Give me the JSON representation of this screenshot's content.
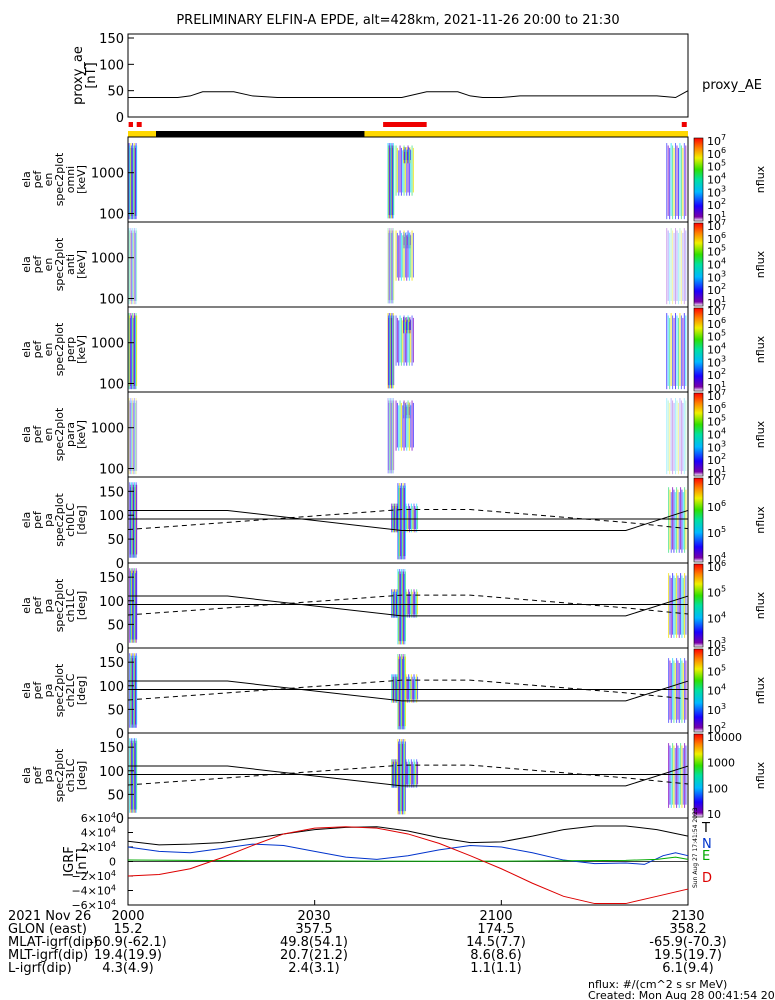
{
  "title": "PRELIMINARY ELFIN-A EPDE, alt=428km, 2021-11-26 20:00 to 21:30",
  "colors": {
    "line": "#000000",
    "bar_yellow": "#ffd800",
    "bar_black": "#000000",
    "bar_red": "#ee0000"
  },
  "chart_data": [
    {
      "type": "line",
      "name": "proxy_ae",
      "ylabel": [
        "proxy_ae",
        "[nT]"
      ],
      "legend": "proxy_AE",
      "ylim": [
        0,
        150
      ],
      "yticks": [
        "150",
        "100",
        "50",
        "0"
      ],
      "x": [
        0,
        4,
        8,
        10,
        12,
        14,
        17,
        20,
        24,
        28,
        31,
        33,
        35,
        37,
        40,
        44,
        48,
        50,
        53,
        55,
        57,
        60,
        63,
        67,
        71,
        75,
        80,
        85,
        88,
        90
      ],
      "values": [
        37,
        37,
        37,
        40,
        48,
        48,
        48,
        40,
        37,
        37,
        37,
        37,
        37,
        37,
        37,
        37,
        48,
        48,
        48,
        40,
        37,
        37,
        40,
        40,
        40,
        40,
        40,
        40,
        37,
        50
      ]
    },
    {
      "type": "heatmap",
      "ylabel": [
        "ela",
        "pef",
        "en",
        "spec2plot",
        "omni",
        "[keV]"
      ],
      "yticks": [
        "1000",
        "100"
      ],
      "cbar_label": "nflux",
      "cbar_ticks": [
        "10",
        "10",
        "10",
        "10",
        "10",
        "10",
        "10"
      ],
      "cbar_exps": [
        "7",
        "6",
        "5",
        "4",
        "3",
        "2",
        "1"
      ]
    },
    {
      "type": "heatmap",
      "ylabel": [
        "ela",
        "pef",
        "en",
        "spec2plot",
        "anti",
        "[keV]"
      ],
      "yticks": [
        "1000",
        "100"
      ],
      "cbar_label": "nflux",
      "cbar_ticks": [
        "10",
        "10",
        "10",
        "10",
        "10",
        "10",
        "10"
      ],
      "cbar_exps": [
        "7",
        "6",
        "5",
        "4",
        "3",
        "2",
        "1"
      ]
    },
    {
      "type": "heatmap",
      "ylabel": [
        "ela",
        "pef",
        "en",
        "spec2plot",
        "perp",
        "[keV]"
      ],
      "yticks": [
        "1000",
        "100"
      ],
      "cbar_label": "nflux",
      "cbar_ticks": [
        "10",
        "10",
        "10",
        "10",
        "10",
        "10",
        "10"
      ],
      "cbar_exps": [
        "7",
        "6",
        "5",
        "4",
        "3",
        "2",
        "1"
      ]
    },
    {
      "type": "heatmap",
      "ylabel": [
        "ela",
        "pef",
        "en",
        "spec2plot",
        "para",
        "[keV]"
      ],
      "yticks": [
        "1000",
        "100"
      ],
      "cbar_label": "nflux",
      "cbar_ticks": [
        "10",
        "10",
        "10",
        "10",
        "10",
        "10",
        "10"
      ],
      "cbar_exps": [
        "7",
        "6",
        "5",
        "4",
        "3",
        "2",
        "1"
      ]
    },
    {
      "type": "heatmap",
      "ylabel": [
        "ela",
        "pef",
        "pa",
        "spec2plot",
        "ch0LC",
        "[deg]"
      ],
      "yticks": [
        "150",
        "100",
        "50",
        "0"
      ],
      "cbar_label": "nflux",
      "cbar_ticks": [
        "10",
        "10",
        "10",
        "10"
      ],
      "cbar_exps": [
        "7",
        "6",
        "5",
        "4"
      ]
    },
    {
      "type": "heatmap",
      "ylabel": [
        "ela",
        "pef",
        "pa",
        "spec2plot",
        "ch1LC",
        "[deg]"
      ],
      "yticks": [
        "150",
        "100",
        "50",
        "0"
      ],
      "cbar_label": "nflux",
      "cbar_ticks": [
        "10",
        "10",
        "10",
        "10"
      ],
      "cbar_exps": [
        "6",
        "5",
        "4",
        "3"
      ]
    },
    {
      "type": "heatmap",
      "ylabel": [
        "ela",
        "pef",
        "pa",
        "spec2plot",
        "ch2LC",
        "[deg]"
      ],
      "yticks": [
        "150",
        "100",
        "50",
        "0"
      ],
      "cbar_label": "nflux",
      "cbar_ticks": [
        "10",
        "10",
        "10",
        "10",
        "10"
      ],
      "cbar_exps": [
        "5",
        "5",
        "4",
        "3",
        "2"
      ]
    },
    {
      "type": "heatmap",
      "ylabel": [
        "ela",
        "pef",
        "pa",
        "spec2plot",
        "ch3LC",
        "[deg]"
      ],
      "yticks": [
        "150",
        "100",
        "50",
        "0"
      ],
      "cbar_label": "nflux",
      "cbar_ticks": [
        "10000",
        "1000",
        "100",
        "10"
      ],
      "cbar_exps": [
        "",
        "",
        "",
        ""
      ]
    },
    {
      "type": "line",
      "ylabel": [
        "IGRF",
        "[nT]"
      ],
      "ylim": [
        -60000,
        60000
      ],
      "yticks": [
        "6×10",
        "4×10",
        "2×10",
        "0",
        "−2×10",
        "−4×10",
        "−6×10"
      ],
      "ytick_exps": [
        "4",
        "4",
        "4",
        "",
        "4",
        "4",
        "4"
      ],
      "legend": [
        "T",
        "N",
        "E",
        "D"
      ],
      "series": [
        {
          "name": "T",
          "color": "#000000",
          "x": [
            0,
            5,
            10,
            15,
            20,
            25,
            30,
            35,
            40,
            45,
            50,
            55,
            60,
            65,
            70,
            75,
            80,
            85,
            90
          ],
          "values": [
            28000,
            23000,
            24000,
            26000,
            32000,
            38000,
            44000,
            47000,
            48000,
            42000,
            33000,
            26000,
            27000,
            35000,
            44000,
            49000,
            49000,
            44000,
            35000
          ]
        },
        {
          "name": "N",
          "color": "#0033cc",
          "x": [
            0,
            5,
            10,
            15,
            20,
            25,
            30,
            35,
            40,
            45,
            50,
            55,
            60,
            65,
            70,
            75,
            80,
            83,
            86,
            88,
            90
          ],
          "values": [
            20000,
            14000,
            12000,
            18000,
            24000,
            22000,
            14000,
            6000,
            3000,
            8000,
            16000,
            22000,
            20000,
            12000,
            2000,
            -3000,
            -2000,
            -4000,
            8000,
            12000,
            8000
          ]
        },
        {
          "name": "E",
          "color": "#00aa00",
          "x": [
            0,
            10,
            20,
            30,
            40,
            50,
            60,
            70,
            80,
            85,
            88,
            90
          ],
          "values": [
            2000,
            1500,
            1000,
            800,
            500,
            400,
            500,
            1000,
            1500,
            3000,
            6000,
            3000
          ]
        },
        {
          "name": "D",
          "color": "#dd0000",
          "x": [
            0,
            5,
            10,
            15,
            20,
            25,
            30,
            35,
            40,
            45,
            50,
            55,
            60,
            65,
            70,
            75,
            80,
            85,
            90
          ],
          "values": [
            -20000,
            -18000,
            -10000,
            5000,
            22000,
            38000,
            46000,
            48000,
            46000,
            38000,
            25000,
            8000,
            -10000,
            -30000,
            -48000,
            -58000,
            -58000,
            -48000,
            -38000
          ]
        }
      ]
    }
  ],
  "xaxis": {
    "rows": [
      {
        "label": "2021 Nov 26",
        "values": [
          "2000",
          "2030",
          "2100",
          "2130"
        ]
      },
      {
        "label": "GLON (east)",
        "values": [
          "15.2",
          "357.5",
          "174.5",
          "358.2"
        ]
      },
      {
        "label": "MLAT-igrf(dip)",
        "values": [
          "-60.9(-62.1)",
          "49.8(54.1)",
          "14.5(7.7)",
          "-65.9(-70.3)"
        ]
      },
      {
        "label": "MLT-igrf(dip)",
        "values": [
          "19.4(19.9)",
          "20.7(21.2)",
          "8.6(8.6)",
          "19.5(19.7)"
        ]
      },
      {
        "label": "L-igrf(dip)",
        "values": [
          "4.3(4.9)",
          "2.4(3.1)",
          "1.1(1.1)",
          "6.1(9.4)"
        ]
      }
    ]
  },
  "footer": {
    "units": "nflux: #/(cm^2 s sr MeV)",
    "created": "Created: Mon Aug 28 00:41:54 2023"
  },
  "stamp": "Sun Aug 27 17:41:54 2023"
}
